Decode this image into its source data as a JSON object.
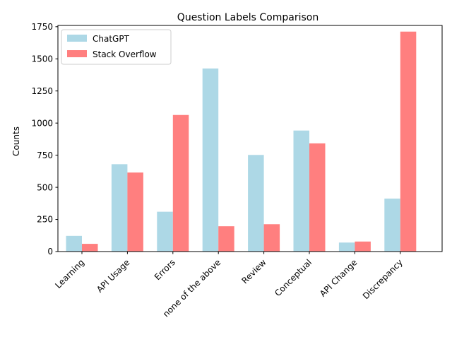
{
  "chart_data": {
    "type": "bar",
    "title": "Question Labels Comparison",
    "xlabel": "",
    "ylabel": "Counts",
    "categories": [
      "Learning",
      "API Usage",
      "Errors",
      "none of the above",
      "Review",
      "Conceptual",
      "API Change",
      "Discrepancy"
    ],
    "series": [
      {
        "name": "ChatGPT",
        "color": "#add8e6",
        "values": [
          122,
          680,
          310,
          1425,
          752,
          942,
          70,
          412
        ]
      },
      {
        "name": "Stack Overflow",
        "color": "#ff7f7f",
        "values": [
          60,
          615,
          1063,
          197,
          213,
          842,
          78,
          1712
        ]
      }
    ],
    "ylim": [
      0,
      1760
    ],
    "yticks": [
      0,
      250,
      500,
      750,
      1000,
      1250,
      1500,
      1750
    ],
    "grid": false,
    "legend_position": "top-left"
  }
}
